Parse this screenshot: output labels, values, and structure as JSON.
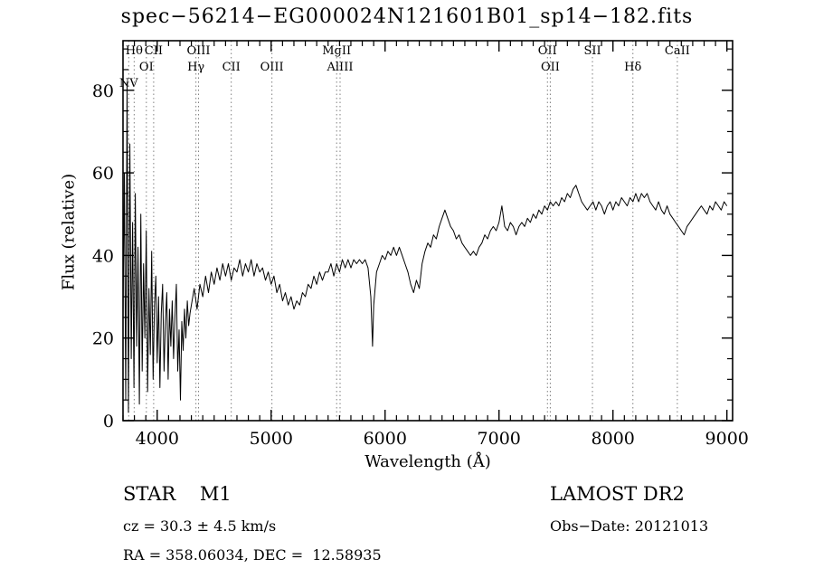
{
  "title": "spec−56214−EG000024N121601B01_sp14−182.fits",
  "footer": {
    "class_label": "STAR    M1",
    "survey": "LAMOST DR2",
    "cz": "cz = 30.3 ± 4.5 km/s",
    "obs_date": "Obs−Date: 20121013",
    "coords": "RA = 358.06034, DEC =  12.58935"
  },
  "chart_data": {
    "type": "line",
    "title": "spec−56214−EG000024N121601B01_sp14−182.fits",
    "xlabel": "Wavelength (Å)",
    "ylabel": "Flux (relative)",
    "xlim": [
      3700,
      9050
    ],
    "ylim": [
      0,
      92
    ],
    "x_ticks": [
      4000,
      5000,
      6000,
      7000,
      8000,
      9000
    ],
    "y_ticks": [
      0,
      20,
      40,
      60,
      80
    ],
    "x_minor_step": 100,
    "y_minor_step": 5,
    "line_color": "#000000",
    "marker_line_color": "#808080",
    "markers": [
      {
        "label": "NV",
        "wavelength": 3750,
        "row": 3
      },
      {
        "label": "Hθ",
        "wavelength": 3798,
        "row": 1
      },
      {
        "label": "OI",
        "wavelength": 3905,
        "row": 2
      },
      {
        "label": "CII",
        "wavelength": 3969,
        "row": 1
      },
      {
        "label": "Hγ",
        "wavelength": 4340,
        "row": 2
      },
      {
        "label": "OIII",
        "wavelength": 4363,
        "row": 1
      },
      {
        "label": "CII",
        "wavelength": 4650,
        "row": 2
      },
      {
        "label": "OIII",
        "wavelength": 5007,
        "row": 2
      },
      {
        "label": "MgII",
        "wavelength": 5575,
        "row": 1
      },
      {
        "label": "AlIII",
        "wavelength": 5605,
        "row": 2
      },
      {
        "label": "OII",
        "wavelength": 7425,
        "row": 1
      },
      {
        "label": "OII",
        "wavelength": 7450,
        "row": 2
      },
      {
        "label": "SII",
        "wavelength": 7820,
        "row": 1
      },
      {
        "label": "Hδ",
        "wavelength": 8175,
        "row": 2
      },
      {
        "label": "CaII",
        "wavelength": 8565,
        "row": 1
      }
    ],
    "points": [
      [
        3700,
        25
      ],
      [
        3712,
        60
      ],
      [
        3724,
        5
      ],
      [
        3736,
        82
      ],
      [
        3748,
        2
      ],
      [
        3760,
        67
      ],
      [
        3772,
        15
      ],
      [
        3784,
        48
      ],
      [
        3796,
        8
      ],
      [
        3808,
        55
      ],
      [
        3820,
        18
      ],
      [
        3832,
        42
      ],
      [
        3844,
        4
      ],
      [
        3856,
        50
      ],
      [
        3868,
        12
      ],
      [
        3880,
        38
      ],
      [
        3892,
        20
      ],
      [
        3904,
        46
      ],
      [
        3916,
        7
      ],
      [
        3928,
        32
      ],
      [
        3940,
        16
      ],
      [
        3952,
        41
      ],
      [
        3964,
        10
      ],
      [
        3976,
        28
      ],
      [
        3988,
        35
      ],
      [
        4000,
        14
      ],
      [
        4012,
        30
      ],
      [
        4024,
        8
      ],
      [
        4036,
        26
      ],
      [
        4048,
        33
      ],
      [
        4060,
        12
      ],
      [
        4072,
        24
      ],
      [
        4084,
        31
      ],
      [
        4096,
        10
      ],
      [
        4108,
        27
      ],
      [
        4120,
        18
      ],
      [
        4132,
        29
      ],
      [
        4144,
        15
      ],
      [
        4156,
        25
      ],
      [
        4168,
        33
      ],
      [
        4180,
        12
      ],
      [
        4192,
        22
      ],
      [
        4204,
        5
      ],
      [
        4216,
        24
      ],
      [
        4228,
        17
      ],
      [
        4240,
        27
      ],
      [
        4252,
        20
      ],
      [
        4264,
        29
      ],
      [
        4276,
        23
      ],
      [
        4288,
        26
      ],
      [
        4300,
        28
      ],
      [
        4325,
        32
      ],
      [
        4350,
        27
      ],
      [
        4375,
        33
      ],
      [
        4400,
        30
      ],
      [
        4425,
        35
      ],
      [
        4450,
        31
      ],
      [
        4475,
        36
      ],
      [
        4500,
        33
      ],
      [
        4525,
        37
      ],
      [
        4550,
        34
      ],
      [
        4575,
        38
      ],
      [
        4600,
        35
      ],
      [
        4625,
        38
      ],
      [
        4650,
        34
      ],
      [
        4675,
        37
      ],
      [
        4700,
        36
      ],
      [
        4725,
        39
      ],
      [
        4750,
        35
      ],
      [
        4775,
        38
      ],
      [
        4800,
        36
      ],
      [
        4825,
        39
      ],
      [
        4850,
        35
      ],
      [
        4875,
        38
      ],
      [
        4900,
        36
      ],
      [
        4925,
        37
      ],
      [
        4950,
        34
      ],
      [
        4975,
        36
      ],
      [
        5000,
        33
      ],
      [
        5025,
        35
      ],
      [
        5050,
        31
      ],
      [
        5075,
        33
      ],
      [
        5100,
        29
      ],
      [
        5125,
        31
      ],
      [
        5150,
        28
      ],
      [
        5175,
        30
      ],
      [
        5200,
        27
      ],
      [
        5225,
        29
      ],
      [
        5250,
        28
      ],
      [
        5275,
        31
      ],
      [
        5300,
        30
      ],
      [
        5325,
        33
      ],
      [
        5350,
        32
      ],
      [
        5375,
        35
      ],
      [
        5400,
        33
      ],
      [
        5425,
        36
      ],
      [
        5450,
        34
      ],
      [
        5475,
        36
      ],
      [
        5500,
        36
      ],
      [
        5525,
        38
      ],
      [
        5550,
        35
      ],
      [
        5575,
        38
      ],
      [
        5600,
        36
      ],
      [
        5625,
        39
      ],
      [
        5650,
        37
      ],
      [
        5675,
        39
      ],
      [
        5700,
        37
      ],
      [
        5725,
        39
      ],
      [
        5750,
        38
      ],
      [
        5775,
        39
      ],
      [
        5800,
        38
      ],
      [
        5825,
        39
      ],
      [
        5850,
        37
      ],
      [
        5875,
        30
      ],
      [
        5890,
        18
      ],
      [
        5900,
        28
      ],
      [
        5925,
        36
      ],
      [
        5950,
        38
      ],
      [
        5975,
        40
      ],
      [
        6000,
        39
      ],
      [
        6025,
        41
      ],
      [
        6050,
        40
      ],
      [
        6075,
        42
      ],
      [
        6100,
        40
      ],
      [
        6125,
        42
      ],
      [
        6150,
        40
      ],
      [
        6175,
        38
      ],
      [
        6200,
        36
      ],
      [
        6225,
        33
      ],
      [
        6250,
        31
      ],
      [
        6275,
        34
      ],
      [
        6300,
        32
      ],
      [
        6325,
        38
      ],
      [
        6350,
        41
      ],
      [
        6375,
        43
      ],
      [
        6400,
        42
      ],
      [
        6425,
        45
      ],
      [
        6450,
        44
      ],
      [
        6475,
        47
      ],
      [
        6500,
        49
      ],
      [
        6525,
        51
      ],
      [
        6550,
        49
      ],
      [
        6575,
        47
      ],
      [
        6600,
        46
      ],
      [
        6625,
        44
      ],
      [
        6650,
        45
      ],
      [
        6675,
        43
      ],
      [
        6700,
        42
      ],
      [
        6725,
        41
      ],
      [
        6750,
        40
      ],
      [
        6775,
        41
      ],
      [
        6800,
        40
      ],
      [
        6825,
        42
      ],
      [
        6850,
        43
      ],
      [
        6875,
        45
      ],
      [
        6900,
        44
      ],
      [
        6925,
        46
      ],
      [
        6950,
        47
      ],
      [
        6975,
        46
      ],
      [
        7000,
        48
      ],
      [
        7025,
        52
      ],
      [
        7050,
        47
      ],
      [
        7075,
        46
      ],
      [
        7100,
        48
      ],
      [
        7125,
        47
      ],
      [
        7150,
        45
      ],
      [
        7175,
        47
      ],
      [
        7200,
        48
      ],
      [
        7225,
        47
      ],
      [
        7250,
        49
      ],
      [
        7275,
        48
      ],
      [
        7300,
        50
      ],
      [
        7325,
        49
      ],
      [
        7350,
        51
      ],
      [
        7375,
        50
      ],
      [
        7400,
        52
      ],
      [
        7425,
        51
      ],
      [
        7450,
        53
      ],
      [
        7475,
        52
      ],
      [
        7500,
        53
      ],
      [
        7525,
        52
      ],
      [
        7550,
        54
      ],
      [
        7575,
        53
      ],
      [
        7600,
        55
      ],
      [
        7625,
        54
      ],
      [
        7650,
        56
      ],
      [
        7675,
        57
      ],
      [
        7700,
        55
      ],
      [
        7725,
        53
      ],
      [
        7750,
        52
      ],
      [
        7775,
        51
      ],
      [
        7800,
        52
      ],
      [
        7825,
        53
      ],
      [
        7850,
        51
      ],
      [
        7875,
        53
      ],
      [
        7900,
        52
      ],
      [
        7925,
        50
      ],
      [
        7950,
        52
      ],
      [
        7975,
        53
      ],
      [
        8000,
        51
      ],
      [
        8025,
        53
      ],
      [
        8050,
        52
      ],
      [
        8075,
        54
      ],
      [
        8100,
        53
      ],
      [
        8125,
        52
      ],
      [
        8150,
        54
      ],
      [
        8175,
        53
      ],
      [
        8200,
        55
      ],
      [
        8225,
        53
      ],
      [
        8250,
        55
      ],
      [
        8275,
        54
      ],
      [
        8300,
        55
      ],
      [
        8325,
        53
      ],
      [
        8350,
        52
      ],
      [
        8375,
        51
      ],
      [
        8400,
        53
      ],
      [
        8425,
        51
      ],
      [
        8450,
        50
      ],
      [
        8475,
        52
      ],
      [
        8500,
        50
      ],
      [
        8525,
        49
      ],
      [
        8550,
        48
      ],
      [
        8575,
        47
      ],
      [
        8600,
        46
      ],
      [
        8625,
        45
      ],
      [
        8650,
        47
      ],
      [
        8675,
        48
      ],
      [
        8700,
        49
      ],
      [
        8725,
        50
      ],
      [
        8750,
        51
      ],
      [
        8775,
        52
      ],
      [
        8800,
        51
      ],
      [
        8825,
        50
      ],
      [
        8850,
        52
      ],
      [
        8875,
        51
      ],
      [
        8900,
        53
      ],
      [
        8925,
        52
      ],
      [
        8950,
        51
      ],
      [
        8975,
        53
      ],
      [
        9000,
        52
      ]
    ]
  }
}
